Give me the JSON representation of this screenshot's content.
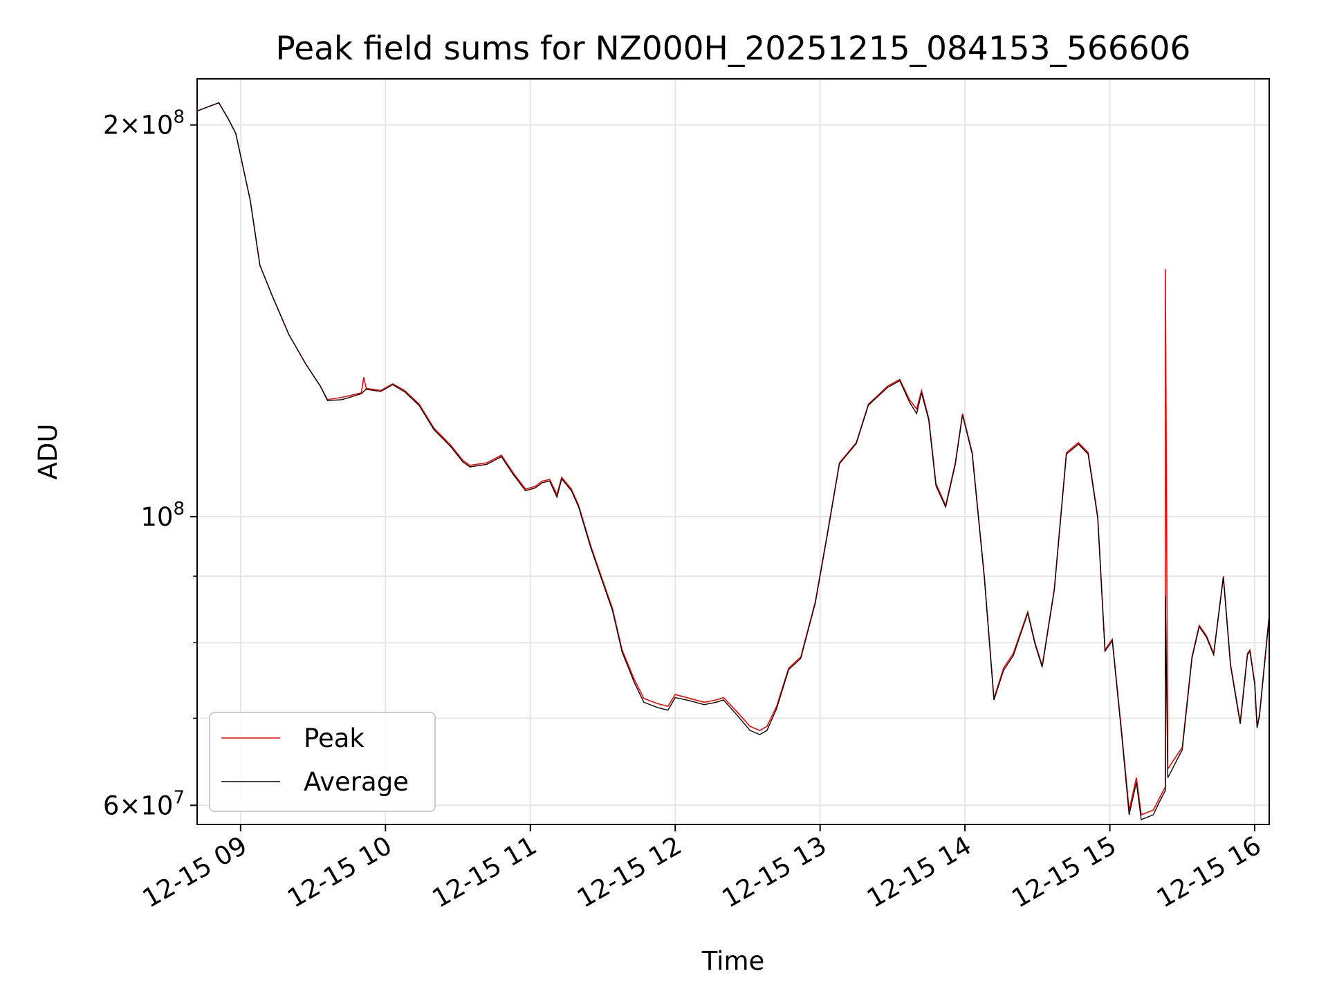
{
  "chart_data": {
    "type": "line",
    "title": "Peak field sums for NZ000H_20251215_084153_566606",
    "xlabel": "Time",
    "ylabel": "ADU",
    "x_axis": "date",
    "y_scale": "log",
    "xlim": [
      "2025-12-15 08:42",
      "2025-12-15 16:06"
    ],
    "ylim": [
      58000000,
      217000000
    ],
    "x_ticks": [
      {
        "value": "2025-12-15 09:00",
        "label": "12-15 09"
      },
      {
        "value": "2025-12-15 10:00",
        "label": "12-15 10"
      },
      {
        "value": "2025-12-15 11:00",
        "label": "12-15 11"
      },
      {
        "value": "2025-12-15 12:00",
        "label": "12-15 12"
      },
      {
        "value": "2025-12-15 13:00",
        "label": "12-15 13"
      },
      {
        "value": "2025-12-15 14:00",
        "label": "12-15 14"
      },
      {
        "value": "2025-12-15 15:00",
        "label": "12-15 15"
      },
      {
        "value": "2025-12-15 16:00",
        "label": "12-15 16"
      }
    ],
    "y_major_ticks": [
      {
        "value": 60000000,
        "mantissa": "6",
        "exponent": "7"
      },
      {
        "value": 100000000,
        "mantissa": "",
        "exponent": "8"
      },
      {
        "value": 200000000,
        "mantissa": "2",
        "exponent": "8"
      }
    ],
    "y_minor_ticks": [
      70000000,
      80000000,
      90000000
    ],
    "grid": true,
    "legend_position": "lower-left",
    "series": [
      {
        "name": "Peak",
        "color": "#ff0000",
        "points": [
          [
            "2025-12-15 08:42",
            205000000
          ],
          [
            "2025-12-15 08:48",
            207000000
          ],
          [
            "2025-12-15 08:51",
            208000000
          ],
          [
            "2025-12-15 08:55",
            202000000
          ],
          [
            "2025-12-15 08:58",
            197000000
          ],
          [
            "2025-12-15 09:04",
            175000000
          ],
          [
            "2025-12-15 09:08",
            156000000
          ],
          [
            "2025-12-15 09:13",
            148000000
          ],
          [
            "2025-12-15 09:20",
            138000000
          ],
          [
            "2025-12-15 09:27",
            131000000
          ],
          [
            "2025-12-15 09:33",
            126000000
          ],
          [
            "2025-12-15 09:36",
            123000000
          ],
          [
            "2025-12-15 09:42",
            123500000
          ],
          [
            "2025-12-15 09:50",
            124500000
          ],
          [
            "2025-12-15 09:51",
            128000000
          ],
          [
            "2025-12-15 09:52",
            125500000
          ],
          [
            "2025-12-15 09:58",
            125000000
          ],
          [
            "2025-12-15 10:03",
            126500000
          ],
          [
            "2025-12-15 10:08",
            125000000
          ],
          [
            "2025-12-15 10:14",
            122000000
          ],
          [
            "2025-12-15 10:20",
            117000000
          ],
          [
            "2025-12-15 10:27",
            113500000
          ],
          [
            "2025-12-15 10:32",
            110500000
          ],
          [
            "2025-12-15 10:35",
            109500000
          ],
          [
            "2025-12-15 10:42",
            110000000
          ],
          [
            "2025-12-15 10:48",
            111500000
          ],
          [
            "2025-12-15 10:53",
            108000000
          ],
          [
            "2025-12-15 10:58",
            105000000
          ],
          [
            "2025-12-15 11:02",
            105500000
          ],
          [
            "2025-12-15 11:05",
            106500000
          ],
          [
            "2025-12-15 11:08",
            106800000
          ],
          [
            "2025-12-15 11:11",
            104000000
          ],
          [
            "2025-12-15 11:13",
            107200000
          ],
          [
            "2025-12-15 11:17",
            105000000
          ],
          [
            "2025-12-15 11:20",
            102000000
          ],
          [
            "2025-12-15 11:25",
            95000000
          ],
          [
            "2025-12-15 11:28",
            91500000
          ],
          [
            "2025-12-15 11:34",
            85000000
          ],
          [
            "2025-12-15 11:38",
            79000000
          ],
          [
            "2025-12-15 11:43",
            75000000
          ],
          [
            "2025-12-15 11:47",
            72500000
          ],
          [
            "2025-12-15 11:53",
            71800000
          ],
          [
            "2025-12-15 11:57",
            71500000
          ],
          [
            "2025-12-15 12:00",
            73000000
          ],
          [
            "2025-12-15 12:06",
            72500000
          ],
          [
            "2025-12-15 12:12",
            72000000
          ],
          [
            "2025-12-15 12:17",
            72300000
          ],
          [
            "2025-12-15 12:20",
            72600000
          ],
          [
            "2025-12-15 12:25",
            71000000
          ],
          [
            "2025-12-15 12:31",
            69000000
          ],
          [
            "2025-12-15 12:35",
            68500000
          ],
          [
            "2025-12-15 12:38",
            69000000
          ],
          [
            "2025-12-15 12:42",
            71500000
          ],
          [
            "2025-12-15 12:47",
            76500000
          ],
          [
            "2025-12-15 12:52",
            78000000
          ],
          [
            "2025-12-15 12:58",
            86000000
          ],
          [
            "2025-12-15 13:03",
            97000000
          ],
          [
            "2025-12-15 13:08",
            110000000
          ],
          [
            "2025-12-15 13:15",
            114000000
          ],
          [
            "2025-12-15 13:20",
            122000000
          ],
          [
            "2025-12-15 13:28",
            126000000
          ],
          [
            "2025-12-15 13:33",
            127500000
          ],
          [
            "2025-12-15 13:37",
            123000000
          ],
          [
            "2025-12-15 13:40",
            121000000
          ],
          [
            "2025-12-15 13:42",
            125000000
          ],
          [
            "2025-12-15 13:45",
            119000000
          ],
          [
            "2025-12-15 13:48",
            106000000
          ],
          [
            "2025-12-15 13:52",
            102000000
          ],
          [
            "2025-12-15 13:56",
            110000000
          ],
          [
            "2025-12-15 13:59",
            120000000
          ],
          [
            "2025-12-15 14:03",
            112000000
          ],
          [
            "2025-12-15 14:08",
            90000000
          ],
          [
            "2025-12-15 14:12",
            72500000
          ],
          [
            "2025-12-15 14:16",
            76500000
          ],
          [
            "2025-12-15 14:20",
            78500000
          ],
          [
            "2025-12-15 14:26",
            84500000
          ],
          [
            "2025-12-15 14:29",
            80000000
          ],
          [
            "2025-12-15 14:32",
            76800000
          ],
          [
            "2025-12-15 14:37",
            88000000
          ],
          [
            "2025-12-15 14:42",
            112000000
          ],
          [
            "2025-12-15 14:47",
            114000000
          ],
          [
            "2025-12-15 14:51",
            112000000
          ],
          [
            "2025-12-15 14:55",
            100000000
          ],
          [
            "2025-12-15 14:58",
            79000000
          ],
          [
            "2025-12-15 15:01",
            80500000
          ],
          [
            "2025-12-15 15:05",
            68000000
          ],
          [
            "2025-12-15 15:08",
            59500000
          ],
          [
            "2025-12-15 15:11",
            63000000
          ],
          [
            "2025-12-15 15:13",
            59000000
          ],
          [
            "2025-12-15 15:18",
            59500000
          ],
          [
            "2025-12-15 15:21",
            61000000
          ],
          [
            "2025-12-15 15:23",
            62000000
          ],
          [
            "2025-12-15 15:23",
            155000000
          ],
          [
            "2025-12-15 15:24",
            64000000
          ],
          [
            "2025-12-15 15:30",
            66500000
          ],
          [
            "2025-12-15 15:34",
            78000000
          ],
          [
            "2025-12-15 15:37",
            82500000
          ],
          [
            "2025-12-15 15:40",
            81000000
          ],
          [
            "2025-12-15 15:43",
            78500000
          ],
          [
            "2025-12-15 15:47",
            90000000
          ],
          [
            "2025-12-15 15:50",
            77000000
          ],
          [
            "2025-12-15 15:54",
            69500000
          ],
          [
            "2025-12-15 15:57",
            78500000
          ],
          [
            "2025-12-15 15:58",
            79000000
          ],
          [
            "2025-12-15 16:00",
            74500000
          ],
          [
            "2025-12-15 16:01",
            69000000
          ],
          [
            "2025-12-15 16:02",
            70500000
          ],
          [
            "2025-12-15 16:06",
            84000000
          ]
        ]
      },
      {
        "name": "Average",
        "color": "#000000",
        "points": [
          [
            "2025-12-15 08:42",
            205000000
          ],
          [
            "2025-12-15 08:48",
            207000000
          ],
          [
            "2025-12-15 08:51",
            208000000
          ],
          [
            "2025-12-15 08:55",
            202000000
          ],
          [
            "2025-12-15 08:58",
            197000000
          ],
          [
            "2025-12-15 09:04",
            175000000
          ],
          [
            "2025-12-15 09:08",
            156000000
          ],
          [
            "2025-12-15 09:13",
            148000000
          ],
          [
            "2025-12-15 09:20",
            138000000
          ],
          [
            "2025-12-15 09:27",
            131000000
          ],
          [
            "2025-12-15 09:33",
            126000000
          ],
          [
            "2025-12-15 09:36",
            122800000
          ],
          [
            "2025-12-15 09:42",
            123000000
          ],
          [
            "2025-12-15 09:50",
            124300000
          ],
          [
            "2025-12-15 09:52",
            125300000
          ],
          [
            "2025-12-15 09:58",
            124800000
          ],
          [
            "2025-12-15 10:03",
            126300000
          ],
          [
            "2025-12-15 10:08",
            124700000
          ],
          [
            "2025-12-15 10:14",
            121700000
          ],
          [
            "2025-12-15 10:20",
            116700000
          ],
          [
            "2025-12-15 10:27",
            113200000
          ],
          [
            "2025-12-15 10:32",
            110200000
          ],
          [
            "2025-12-15 10:35",
            109200000
          ],
          [
            "2025-12-15 10:42",
            109700000
          ],
          [
            "2025-12-15 10:48",
            111200000
          ],
          [
            "2025-12-15 10:53",
            107700000
          ],
          [
            "2025-12-15 10:58",
            104700000
          ],
          [
            "2025-12-15 11:02",
            105200000
          ],
          [
            "2025-12-15 11:05",
            106200000
          ],
          [
            "2025-12-15 11:08",
            106500000
          ],
          [
            "2025-12-15 11:11",
            103500000
          ],
          [
            "2025-12-15 11:13",
            106900000
          ],
          [
            "2025-12-15 11:17",
            104700000
          ],
          [
            "2025-12-15 11:20",
            101700000
          ],
          [
            "2025-12-15 11:25",
            94700000
          ],
          [
            "2025-12-15 11:28",
            91200000
          ],
          [
            "2025-12-15 11:34",
            84700000
          ],
          [
            "2025-12-15 11:38",
            78700000
          ],
          [
            "2025-12-15 11:43",
            74600000
          ],
          [
            "2025-12-15 11:47",
            72000000
          ],
          [
            "2025-12-15 11:53",
            71300000
          ],
          [
            "2025-12-15 11:57",
            71000000
          ],
          [
            "2025-12-15 12:00",
            72600000
          ],
          [
            "2025-12-15 12:06",
            72200000
          ],
          [
            "2025-12-15 12:12",
            71700000
          ],
          [
            "2025-12-15 12:17",
            72000000
          ],
          [
            "2025-12-15 12:20",
            72300000
          ],
          [
            "2025-12-15 12:25",
            70600000
          ],
          [
            "2025-12-15 12:31",
            68500000
          ],
          [
            "2025-12-15 12:35",
            68000000
          ],
          [
            "2025-12-15 12:38",
            68500000
          ],
          [
            "2025-12-15 12:42",
            71200000
          ],
          [
            "2025-12-15 12:47",
            76300000
          ],
          [
            "2025-12-15 12:52",
            77800000
          ],
          [
            "2025-12-15 12:58",
            85800000
          ],
          [
            "2025-12-15 13:03",
            96800000
          ],
          [
            "2025-12-15 13:08",
            109800000
          ],
          [
            "2025-12-15 13:15",
            113800000
          ],
          [
            "2025-12-15 13:20",
            121800000
          ],
          [
            "2025-12-15 13:28",
            125700000
          ],
          [
            "2025-12-15 13:33",
            127200000
          ],
          [
            "2025-12-15 13:37",
            122500000
          ],
          [
            "2025-12-15 13:40",
            120000000
          ],
          [
            "2025-12-15 13:42",
            124500000
          ],
          [
            "2025-12-15 13:45",
            118600000
          ],
          [
            "2025-12-15 13:48",
            105600000
          ],
          [
            "2025-12-15 13:52",
            101700000
          ],
          [
            "2025-12-15 13:56",
            109700000
          ],
          [
            "2025-12-15 13:59",
            119700000
          ],
          [
            "2025-12-15 14:03",
            111700000
          ],
          [
            "2025-12-15 14:08",
            89800000
          ],
          [
            "2025-12-15 14:12",
            72300000
          ],
          [
            "2025-12-15 14:16",
            76200000
          ],
          [
            "2025-12-15 14:20",
            78200000
          ],
          [
            "2025-12-15 14:26",
            84300000
          ],
          [
            "2025-12-15 14:29",
            79800000
          ],
          [
            "2025-12-15 14:32",
            76600000
          ],
          [
            "2025-12-15 14:37",
            87800000
          ],
          [
            "2025-12-15 14:42",
            111700000
          ],
          [
            "2025-12-15 14:47",
            113700000
          ],
          [
            "2025-12-15 14:51",
            111700000
          ],
          [
            "2025-12-15 14:55",
            99700000
          ],
          [
            "2025-12-15 14:58",
            78800000
          ],
          [
            "2025-12-15 15:01",
            80300000
          ],
          [
            "2025-12-15 15:05",
            67700000
          ],
          [
            "2025-12-15 15:08",
            59000000
          ],
          [
            "2025-12-15 15:11",
            62500000
          ],
          [
            "2025-12-15 15:13",
            58500000
          ],
          [
            "2025-12-15 15:18",
            59000000
          ],
          [
            "2025-12-15 15:21",
            60600000
          ],
          [
            "2025-12-15 15:23",
            61600000
          ],
          [
            "2025-12-15 15:23",
            87000000
          ],
          [
            "2025-12-15 15:24",
            63000000
          ],
          [
            "2025-12-15 15:30",
            66200000
          ],
          [
            "2025-12-15 15:34",
            77800000
          ],
          [
            "2025-12-15 15:37",
            82300000
          ],
          [
            "2025-12-15 15:40",
            80800000
          ],
          [
            "2025-12-15 15:43",
            78300000
          ],
          [
            "2025-12-15 15:47",
            89800000
          ],
          [
            "2025-12-15 15:50",
            76800000
          ],
          [
            "2025-12-15 15:54",
            69300000
          ],
          [
            "2025-12-15 15:57",
            78300000
          ],
          [
            "2025-12-15 15:58",
            78800000
          ],
          [
            "2025-12-15 16:00",
            74300000
          ],
          [
            "2025-12-15 16:01",
            68800000
          ],
          [
            "2025-12-15 16:02",
            70300000
          ],
          [
            "2025-12-15 16:06",
            83800000
          ]
        ]
      }
    ]
  }
}
